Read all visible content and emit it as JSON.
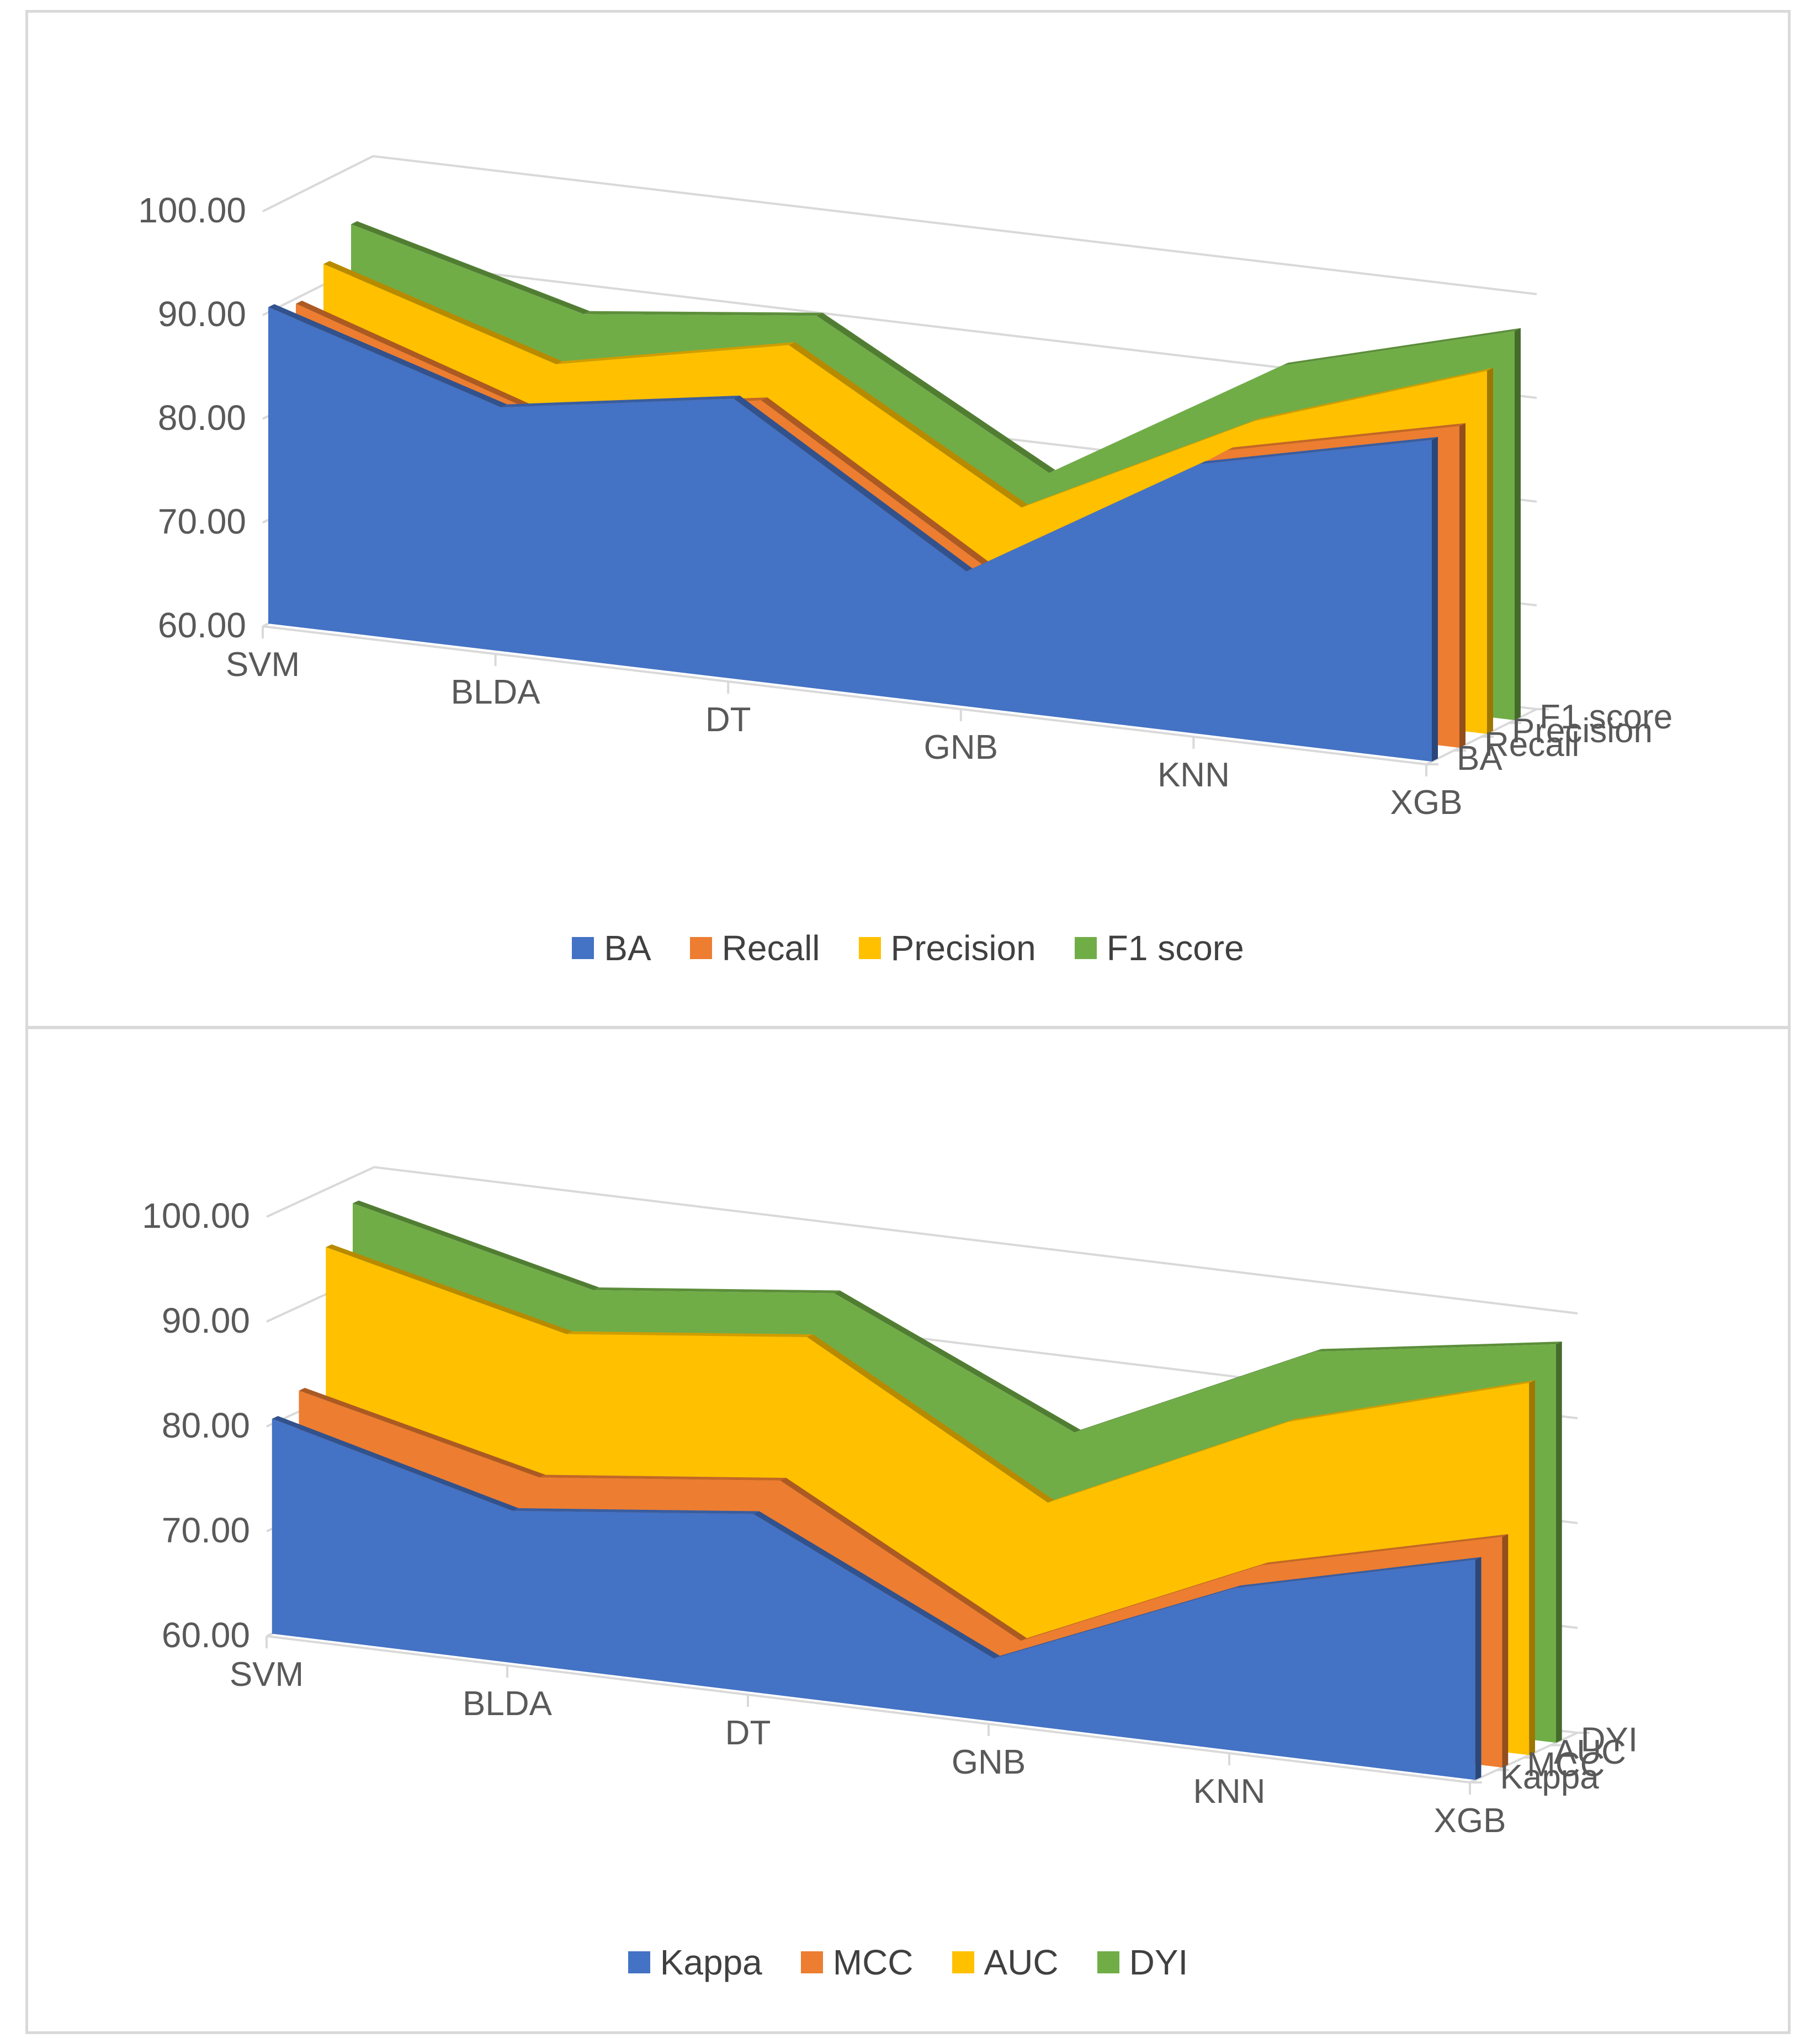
{
  "colors": {
    "blue": "#4472c4",
    "orange": "#ed7d31",
    "yellow": "#ffc000",
    "green": "#70ad47"
  },
  "chart_data": [
    {
      "type": "area",
      "title": "",
      "categories": [
        "SVM",
        "BLDA",
        "DT",
        "GNB",
        "KNN",
        "XGB"
      ],
      "ylim": [
        60,
        100
      ],
      "yticks": [
        "60.00",
        "70.00",
        "80.00",
        "90.00",
        "100.00"
      ],
      "depth_labels": [
        "BA",
        "Recall",
        "Precision",
        "F1 score"
      ],
      "legend_position": "bottom",
      "series": [
        {
          "name": "BA",
          "color": "#4472c4",
          "values": [
            90.5,
            83.5,
            87.0,
            73.0,
            86.0,
            91.0
          ]
        },
        {
          "name": "Recall",
          "color": "#ed7d31",
          "values": [
            89.5,
            82.0,
            85.5,
            71.5,
            86.0,
            91.0
          ]
        },
        {
          "name": "Precision",
          "color": "#ffc000",
          "values": [
            92.0,
            85.0,
            89.5,
            76.5,
            87.5,
            95.0
          ]
        },
        {
          "name": "F1 score",
          "color": "#70ad47",
          "values": [
            94.5,
            88.5,
            91.0,
            78.5,
            91.5,
            97.5
          ]
        }
      ]
    },
    {
      "type": "area",
      "title": "",
      "categories": [
        "SVM",
        "BLDA",
        "DT",
        "GNB",
        "KNN",
        "XGB"
      ],
      "ylim": [
        60,
        100
      ],
      "yticks": [
        "60.00",
        "70.00",
        "80.00",
        "90.00",
        "100.00"
      ],
      "depth_labels": [
        "Kappa",
        "MCC",
        "AUC",
        "DYI"
      ],
      "legend_position": "bottom",
      "series": [
        {
          "name": "Kappa",
          "color": "#4472c4",
          "values": [
            80.5,
            74.5,
            77.0,
            66.0,
            75.5,
            81.0
          ]
        },
        {
          "name": "MCC",
          "color": "#ed7d31",
          "values": [
            82.0,
            76.5,
            79.0,
            66.5,
            76.5,
            82.0
          ]
        },
        {
          "name": "AUC",
          "color": "#ffc000",
          "values": [
            94.5,
            89.0,
            91.5,
            78.5,
            89.0,
            95.5
          ]
        },
        {
          "name": "DYI",
          "color": "#70ad47",
          "values": [
            97.5,
            92.0,
            94.5,
            84.0,
            94.5,
            98.0
          ]
        }
      ]
    }
  ]
}
